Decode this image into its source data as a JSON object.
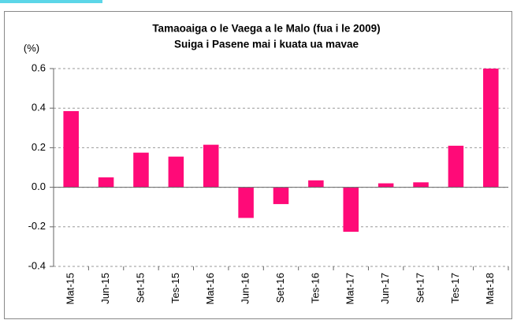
{
  "chart_data": {
    "type": "bar",
    "title": "Tamaoaiga o le Vaega a le Malo (fua i le 2009)",
    "subtitle": "Suiga i Pasene mai i kuata ua mavae",
    "y_label": "(%)",
    "categories": [
      "Mat-15",
      "Jun-15",
      "Set-15",
      "Tes-15",
      "Mat-16",
      "Jun-16",
      "Set-16",
      "Tes-16",
      "Mat-17",
      "Jun-17",
      "Set-17",
      "Tes-17",
      "Mat-18"
    ],
    "values": [
      0.385,
      0.05,
      0.175,
      0.155,
      0.215,
      -0.155,
      -0.085,
      0.035,
      -0.225,
      0.02,
      0.025,
      0.21,
      0.6
    ],
    "color": "#ff0a78",
    "ylim": [
      -0.4,
      0.6
    ],
    "yticks": [
      -0.4,
      -0.2,
      {
        "value": 0,
        "label": "0.0"
      },
      0.2,
      0.4,
      0.6
    ],
    "grid": true
  }
}
